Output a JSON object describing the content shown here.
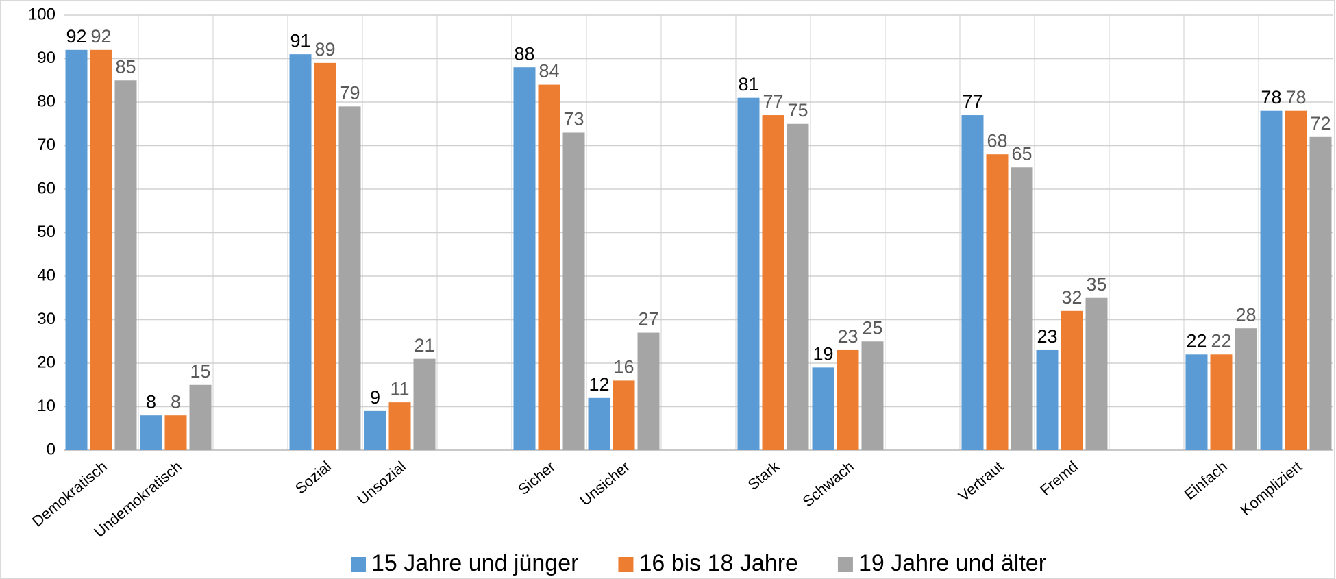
{
  "chart_data": {
    "type": "bar",
    "categories": [
      "Demokratisch",
      "Undemokratisch",
      null,
      "Sozial",
      "Unsozial",
      null,
      "Sicher",
      "Unsicher",
      null,
      "Stark",
      "Schwach",
      null,
      "Vertraut",
      "Fremd",
      null,
      "Einfach",
      "Kompliziert"
    ],
    "series": [
      {
        "name": "15 Jahre und jünger",
        "color": "#5b9bd5",
        "values": [
          92,
          8,
          null,
          91,
          9,
          null,
          88,
          12,
          null,
          81,
          19,
          null,
          77,
          23,
          null,
          22,
          78
        ]
      },
      {
        "name": "16 bis 18 Jahre",
        "color": "#ed7d31",
        "values": [
          92,
          8,
          null,
          89,
          11,
          null,
          84,
          16,
          null,
          77,
          23,
          null,
          68,
          32,
          null,
          22,
          78
        ]
      },
      {
        "name": "19 Jahre und älter",
        "color": "#a5a5a5",
        "values": [
          85,
          15,
          null,
          79,
          21,
          null,
          73,
          27,
          null,
          75,
          25,
          null,
          65,
          35,
          null,
          28,
          72
        ]
      }
    ],
    "ylim": [
      0,
      100
    ],
    "yticks": [
      0,
      10,
      20,
      30,
      40,
      50,
      60,
      70,
      80,
      90,
      100
    ],
    "grid": true,
    "legend": "bottom"
  }
}
